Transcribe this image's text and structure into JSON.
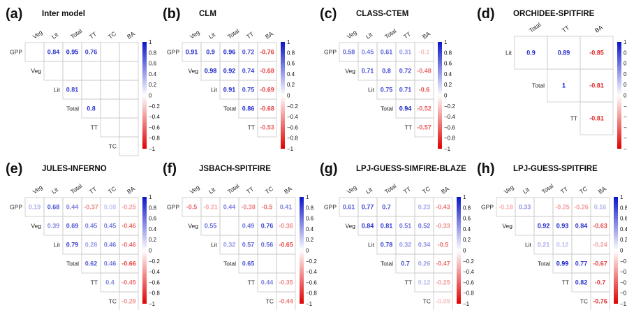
{
  "colors": {
    "positive": "#0a14c8",
    "negative": "#e00000",
    "neutral": "#ffffff",
    "grid": "#c8c8c8"
  },
  "colorbar_ticks": [
    "1",
    "0.8",
    "0.6",
    "0.4",
    "0.2",
    "0",
    "−0.2",
    "−0.4",
    "−0.6",
    "−0.8",
    "−1"
  ],
  "chart_data": [
    {
      "type": "heatmap",
      "letter": "(a)",
      "title": "Inter model",
      "cols": [
        "Veg",
        "Lit",
        "Total",
        "TT",
        "TC",
        "BA"
      ],
      "rows": [
        "GPP",
        "Veg",
        "Lit",
        "Total",
        "TT",
        "TC"
      ],
      "values": [
        [
          null,
          0.84,
          0.95,
          0.76,
          null,
          null
        ],
        [
          null,
          null,
          null,
          null,
          null,
          null
        ],
        [
          null,
          null,
          0.81,
          null,
          null,
          null
        ],
        [
          null,
          null,
          null,
          0.8,
          null,
          null
        ],
        [
          null,
          null,
          null,
          null,
          null,
          null
        ],
        [
          null,
          null,
          null,
          null,
          null,
          null
        ]
      ]
    },
    {
      "type": "heatmap",
      "letter": "(b)",
      "title": "CLM",
      "cols": [
        "Veg",
        "Lit",
        "Total",
        "TT",
        "BA"
      ],
      "rows": [
        "GPP",
        "Veg",
        "Lit",
        "Total",
        "TT"
      ],
      "values": [
        [
          0.91,
          0.9,
          0.96,
          0.72,
          -0.76
        ],
        [
          null,
          0.98,
          0.92,
          0.74,
          -0.68
        ],
        [
          null,
          null,
          0.91,
          0.75,
          -0.69
        ],
        [
          null,
          null,
          null,
          0.86,
          -0.68
        ],
        [
          null,
          null,
          null,
          null,
          -0.53
        ]
      ]
    },
    {
      "type": "heatmap",
      "letter": "(c)",
      "title": "CLASS-CTEM",
      "cols": [
        "Veg",
        "Lit",
        "Total",
        "TT",
        "BA"
      ],
      "rows": [
        "GPP",
        "Veg",
        "Lit",
        "Total",
        "TT"
      ],
      "values": [
        [
          0.58,
          0.45,
          0.61,
          0.31,
          -0.1
        ],
        [
          null,
          0.71,
          0.8,
          0.72,
          -0.48
        ],
        [
          null,
          null,
          0.75,
          0.71,
          -0.6
        ],
        [
          null,
          null,
          null,
          0.94,
          -0.52
        ],
        [
          null,
          null,
          null,
          null,
          -0.57
        ]
      ]
    },
    {
      "type": "heatmap",
      "letter": "(d)",
      "title": "ORCHIDEE-SPITFIRE",
      "cols": [
        "Total",
        "TT",
        "BA"
      ],
      "rows": [
        "Lit",
        "Total",
        "TT"
      ],
      "values": [
        [
          0.9,
          0.89,
          -0.85
        ],
        [
          null,
          1,
          -0.81
        ],
        [
          null,
          null,
          -0.81
        ]
      ]
    },
    {
      "type": "heatmap",
      "letter": "(e)",
      "title": "JULES-INFERNO",
      "cols": [
        "Veg",
        "Lit",
        "Total",
        "TT",
        "TC",
        "BA"
      ],
      "rows": [
        "GPP",
        "Veg",
        "Lit",
        "Total",
        "TT",
        "TC"
      ],
      "values": [
        [
          0.19,
          0.68,
          0.44,
          -0.37,
          0.08,
          -0.25
        ],
        [
          null,
          0.39,
          0.69,
          0.45,
          0.45,
          -0.46
        ],
        [
          null,
          null,
          0.79,
          0.28,
          0.46,
          -0.46
        ],
        [
          null,
          null,
          null,
          0.62,
          0.46,
          -0.66
        ],
        [
          null,
          null,
          null,
          null,
          0.4,
          -0.45
        ],
        [
          null,
          null,
          null,
          null,
          null,
          -0.29
        ]
      ]
    },
    {
      "type": "heatmap",
      "letter": "(f)",
      "title": "JSBACH-SPITFIRE",
      "cols": [
        "Veg",
        "Lit",
        "Total",
        "TT",
        "TC",
        "BA"
      ],
      "rows": [
        "GPP",
        "Veg",
        "Lit",
        "Total",
        "TT",
        "TC"
      ],
      "values": [
        [
          -0.5,
          -0.21,
          0.44,
          -0.38,
          -0.5,
          0.41
        ],
        [
          null,
          0.55,
          null,
          0.49,
          0.76,
          -0.36
        ],
        [
          null,
          null,
          0.32,
          0.57,
          0.56,
          -0.65
        ],
        [
          null,
          null,
          null,
          0.65,
          null,
          null
        ],
        [
          null,
          null,
          null,
          null,
          0.44,
          -0.35
        ],
        [
          null,
          null,
          null,
          null,
          null,
          -0.44
        ]
      ]
    },
    {
      "type": "heatmap",
      "letter": "(g)",
      "title": "LPJ-GUESS-SIMFIRE-BLAZE",
      "cols": [
        "Veg",
        "Lit",
        "Total",
        "TT",
        "TC",
        "BA"
      ],
      "rows": [
        "GPP",
        "Veg",
        "Lit",
        "Total",
        "TT",
        "TC"
      ],
      "values": [
        [
          0.61,
          0.77,
          0.7,
          null,
          0.23,
          -0.43
        ],
        [
          null,
          0.84,
          0.81,
          0.51,
          0.52,
          -0.33
        ],
        [
          null,
          null,
          0.78,
          0.32,
          0.34,
          -0.5
        ],
        [
          null,
          null,
          null,
          0.7,
          0.26,
          -0.47
        ],
        [
          null,
          null,
          null,
          null,
          0.12,
          -0.25
        ],
        [
          null,
          null,
          null,
          null,
          null,
          -0.09
        ]
      ]
    },
    {
      "type": "heatmap",
      "letter": "(h)",
      "title": "LPJ-GUESS-SPITFIRE",
      "cols": [
        "Veg",
        "Lit",
        "Total",
        "TT",
        "TC",
        "BA"
      ],
      "rows": [
        "GPP",
        "Veg",
        "Lit",
        "Total",
        "TT",
        "TC"
      ],
      "values": [
        [
          -0.18,
          0.33,
          null,
          -0.25,
          -0.26,
          0.16
        ],
        [
          null,
          null,
          0.92,
          0.93,
          0.84,
          -0.63
        ],
        [
          null,
          null,
          0.21,
          0.12,
          null,
          -0.24
        ],
        [
          null,
          null,
          null,
          0.99,
          0.77,
          -0.67
        ],
        [
          null,
          null,
          null,
          null,
          0.82,
          -0.7
        ],
        [
          null,
          null,
          null,
          null,
          null,
          -0.76
        ]
      ]
    }
  ]
}
